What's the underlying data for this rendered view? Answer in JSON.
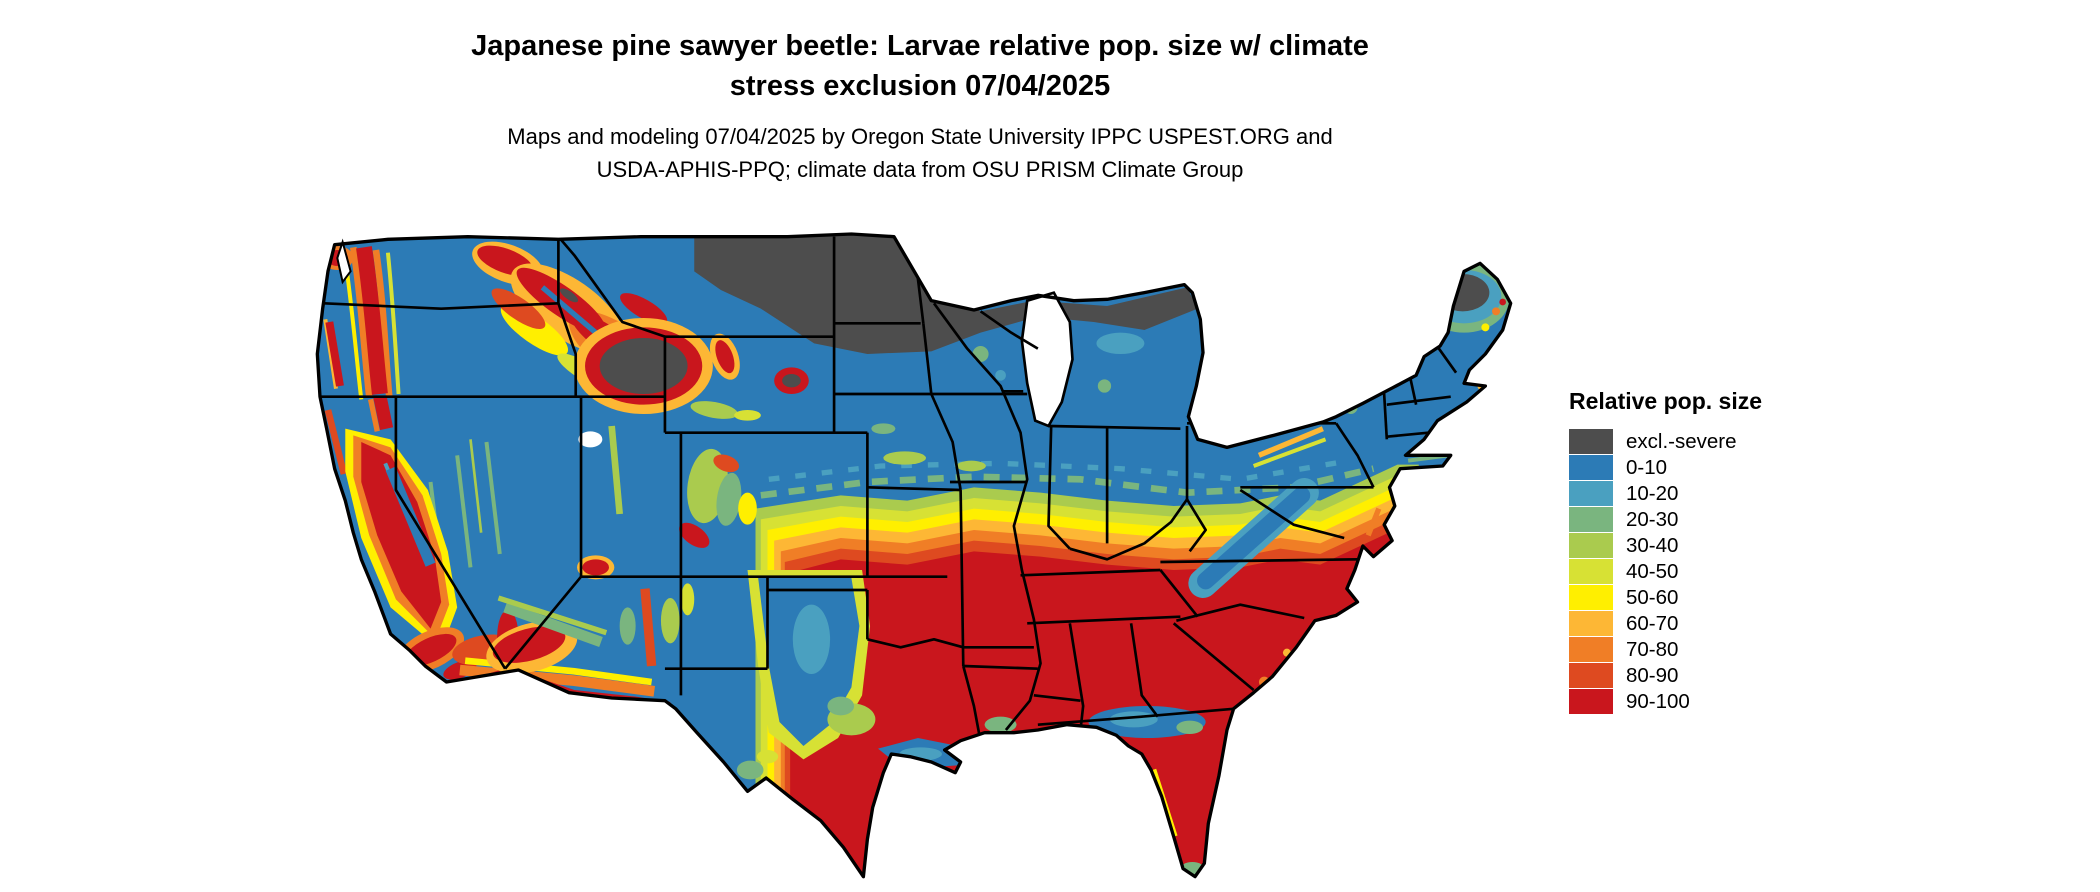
{
  "title": {
    "line1": "Japanese pine sawyer beetle: Larvae relative pop. size w/ climate",
    "line2": "stress exclusion 07/04/2025"
  },
  "subtitle": {
    "line1": "Maps and modeling 07/04/2025 by Oregon State University IPPC USPEST.ORG and",
    "line2": "USDA-APHIS-PPQ; climate data from OSU PRISM Climate Group"
  },
  "legend": {
    "title": "Relative pop. size",
    "entries": [
      {
        "label": "excl.-severe",
        "color": "#4d4d4d"
      },
      {
        "label": "0-10",
        "color": "#2c7bb6"
      },
      {
        "label": "10-20",
        "color": "#4aa0c0"
      },
      {
        "label": "20-30",
        "color": "#7ab57f"
      },
      {
        "label": "30-40",
        "color": "#aacb4e"
      },
      {
        "label": "40-50",
        "color": "#d7e134"
      },
      {
        "label": "50-60",
        "color": "#ffef00"
      },
      {
        "label": "60-70",
        "color": "#fdb735"
      },
      {
        "label": "70-80",
        "color": "#f07e26"
      },
      {
        "label": "80-90",
        "color": "#de4a20"
      },
      {
        "label": "90-100",
        "color": "#c9161d"
      }
    ]
  },
  "map": {
    "region": "contiguous United States",
    "type": "raster choropleth of relative population size",
    "boundary_color": "#000000",
    "water_color": "#ffffff"
  }
}
